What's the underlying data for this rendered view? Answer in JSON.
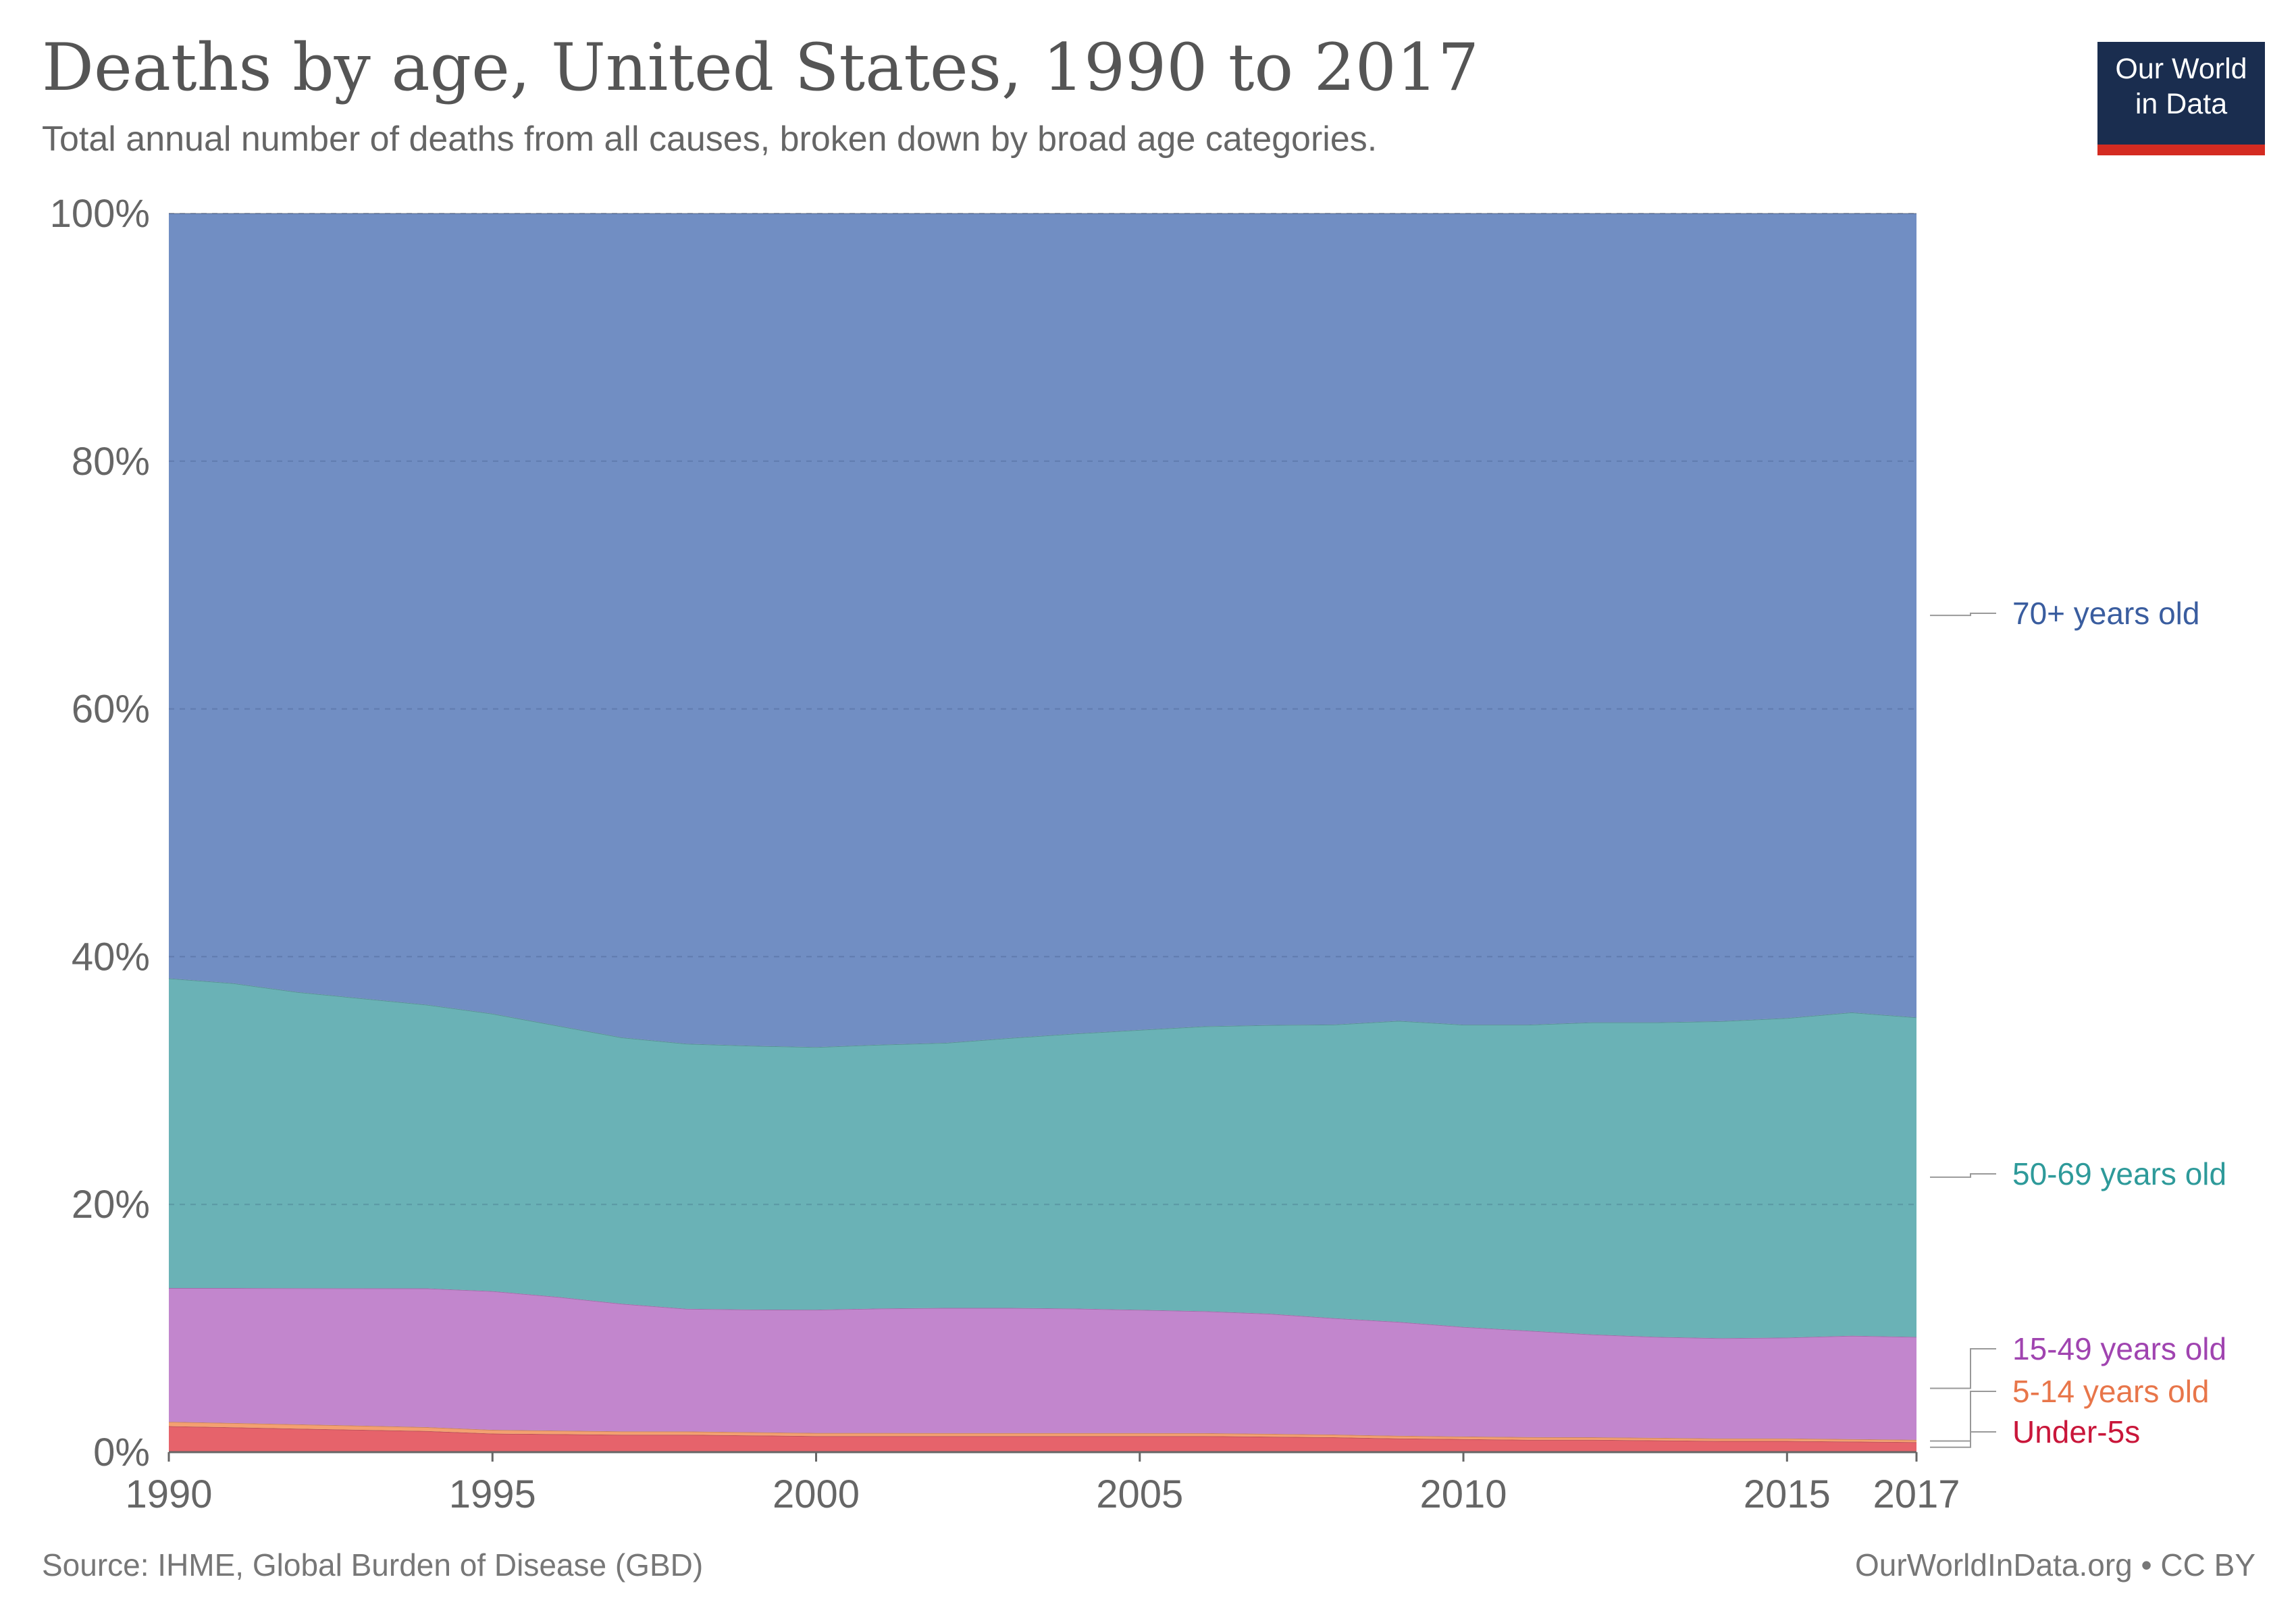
{
  "header": {
    "title": "Deaths by age, United States, 1990 to 2017",
    "subtitle": "Total annual number of deaths from all causes, broken down by broad age categories."
  },
  "logo": {
    "line1": "Our World",
    "line2": "in Data"
  },
  "footer": {
    "source": "Source: IHME, Global Burden of Disease (GBD)",
    "license": "OurWorldInData.org • CC BY"
  },
  "chart_data": {
    "type": "area",
    "stacked": true,
    "relative": true,
    "x": [
      1990,
      1991,
      1992,
      1993,
      1994,
      1995,
      1996,
      1997,
      1998,
      1999,
      2000,
      2001,
      2002,
      2003,
      2004,
      2005,
      2006,
      2007,
      2008,
      2009,
      2010,
      2011,
      2012,
      2013,
      2014,
      2015,
      2016,
      2017
    ],
    "xticks": [
      "1990",
      "1995",
      "2000",
      "2005",
      "2010",
      "2015",
      "2017"
    ],
    "xtick_values": [
      1990,
      1995,
      2000,
      2005,
      2010,
      2015,
      2017
    ],
    "yticks": [
      "0%",
      "20%",
      "40%",
      "60%",
      "80%",
      "100%"
    ],
    "ytick_values": [
      0,
      20,
      40,
      60,
      80,
      100
    ],
    "ylim": [
      0,
      100
    ],
    "grid": true,
    "legend": "right",
    "series": [
      {
        "name": "Under-5s",
        "color": "#e6636b",
        "label_color": "#c9163a",
        "values": [
          2.1,
          2.0,
          1.9,
          1.8,
          1.7,
          1.5,
          1.45,
          1.4,
          1.4,
          1.35,
          1.3,
          1.3,
          1.3,
          1.3,
          1.3,
          1.3,
          1.3,
          1.25,
          1.2,
          1.1,
          1.05,
          1.0,
          1.0,
          0.95,
          0.9,
          0.9,
          0.85,
          0.8
        ]
      },
      {
        "name": "5-14 years old",
        "color": "#f4a070",
        "label_color": "#e8764a",
        "values": [
          0.35,
          0.35,
          0.34,
          0.33,
          0.32,
          0.3,
          0.29,
          0.28,
          0.27,
          0.26,
          0.25,
          0.25,
          0.24,
          0.24,
          0.24,
          0.24,
          0.23,
          0.23,
          0.22,
          0.22,
          0.21,
          0.21,
          0.2,
          0.2,
          0.2,
          0.2,
          0.2,
          0.2
        ]
      },
      {
        "name": "15-49 years old",
        "color": "#c286cd",
        "label_color": "#a044b0",
        "values": [
          10.8,
          10.9,
          11.0,
          11.1,
          11.2,
          11.2,
          10.8,
          10.3,
          9.9,
          9.9,
          9.95,
          10.05,
          10.1,
          10.1,
          10.05,
          9.95,
          9.85,
          9.7,
          9.4,
          9.2,
          8.85,
          8.6,
          8.3,
          8.15,
          8.1,
          8.15,
          8.35,
          8.3
        ]
      },
      {
        "name": "50-69 years old",
        "color": "#6ab2b6",
        "label_color": "#2e9a9a",
        "values": [
          25.0,
          24.6,
          23.9,
          23.4,
          22.9,
          22.4,
          21.9,
          21.5,
          21.4,
          21.3,
          21.2,
          21.3,
          21.4,
          21.8,
          22.2,
          22.6,
          23.0,
          23.3,
          23.7,
          24.3,
          24.4,
          24.7,
          25.2,
          25.4,
          25.6,
          25.8,
          26.1,
          25.8
        ]
      },
      {
        "name": "70+ years old",
        "color": "#718ec3",
        "label_color": "#3a5d9f",
        "values": [
          61.75,
          62.15,
          62.86,
          63.37,
          63.88,
          64.6,
          65.56,
          66.52,
          67.03,
          67.19,
          67.3,
          67.1,
          66.96,
          66.56,
          66.21,
          65.91,
          65.62,
          65.52,
          65.48,
          65.18,
          65.49,
          65.49,
          65.3,
          65.3,
          65.2,
          64.95,
          64.5,
          64.9
        ]
      }
    ]
  }
}
